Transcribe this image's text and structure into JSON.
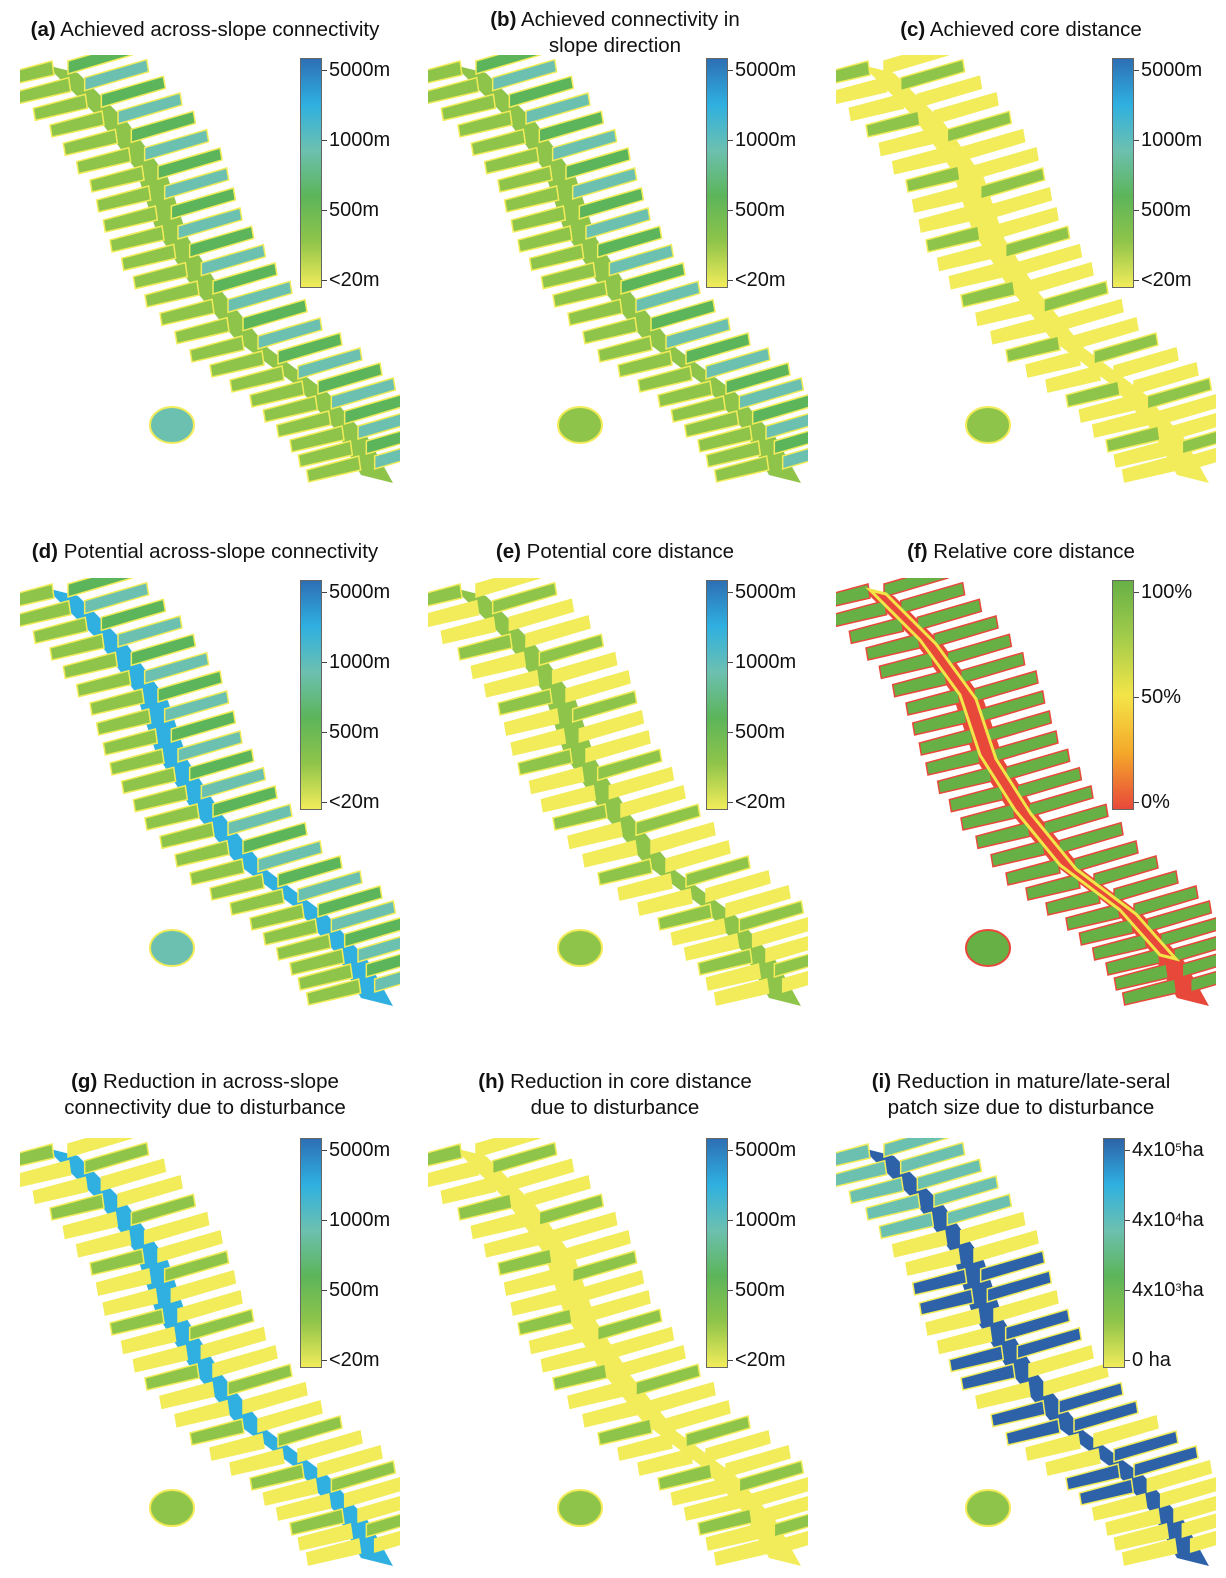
{
  "palettes": {
    "distance": [
      "#f2ec5a",
      "#8fc44a",
      "#5cb55a",
      "#6cc0b0",
      "#2fb0e0",
      "#2d6fb4"
    ],
    "relative": [
      "#e8483a",
      "#f4a92a",
      "#f3e548",
      "#a3cc4a",
      "#67b046"
    ],
    "patch": [
      "#f2ec5a",
      "#8fc44a",
      "#5cb55a",
      "#6cc0b0",
      "#2fb0e0",
      "#2d62a8"
    ]
  },
  "panels": [
    {
      "letter": "(a)",
      "title": [
        "Achieved across-slope connectivity"
      ],
      "scale": "distance",
      "ticks": [
        "5000m",
        "1000m",
        "500m",
        "<20m"
      ]
    },
    {
      "letter": "(b)",
      "title": [
        "Achieved connectivity in",
        "slope direction"
      ],
      "scale": "distance",
      "ticks": [
        "5000m",
        "1000m",
        "500m",
        "<20m"
      ]
    },
    {
      "letter": "(c)",
      "title": [
        "Achieved core distance"
      ],
      "scale": "distance",
      "ticks": [
        "5000m",
        "1000m",
        "500m",
        "<20m"
      ]
    },
    {
      "letter": "(d)",
      "title": [
        "Potential across-slope connectivity"
      ],
      "scale": "distance",
      "ticks": [
        "5000m",
        "1000m",
        "500m",
        "<20m"
      ]
    },
    {
      "letter": "(e)",
      "title": [
        "Potential core distance"
      ],
      "scale": "distance",
      "ticks": [
        "5000m",
        "1000m",
        "500m",
        "<20m"
      ]
    },
    {
      "letter": "(f)",
      "title": [
        "Relative core distance"
      ],
      "scale": "relative",
      "ticks": [
        "100%",
        "50%",
        "0%"
      ]
    },
    {
      "letter": "(g)",
      "title": [
        "Reduction in across-slope",
        "connectivity due to disturbance"
      ],
      "scale": "distance",
      "ticks": [
        "5000m",
        "1000m",
        "500m",
        "<20m"
      ]
    },
    {
      "letter": "(h)",
      "title": [
        "Reduction in core distance",
        "due to disturbance"
      ],
      "scale": "distance",
      "ticks": [
        "5000m",
        "1000m",
        "500m",
        "<20m"
      ]
    },
    {
      "letter": "(i)",
      "title": [
        "Reduction in mature/late-seral",
        "patch size due to disturbance"
      ],
      "scale": "patch",
      "ticks": [
        {
          "base": "4x10",
          "exp": "5",
          "unit": "ha"
        },
        {
          "base": "4x10",
          "exp": "4",
          "unit": "ha"
        },
        {
          "base": "4x10",
          "exp": "3",
          "unit": "ha"
        },
        {
          "base": "0 ha",
          "exp": "",
          "unit": ""
        }
      ]
    }
  ]
}
